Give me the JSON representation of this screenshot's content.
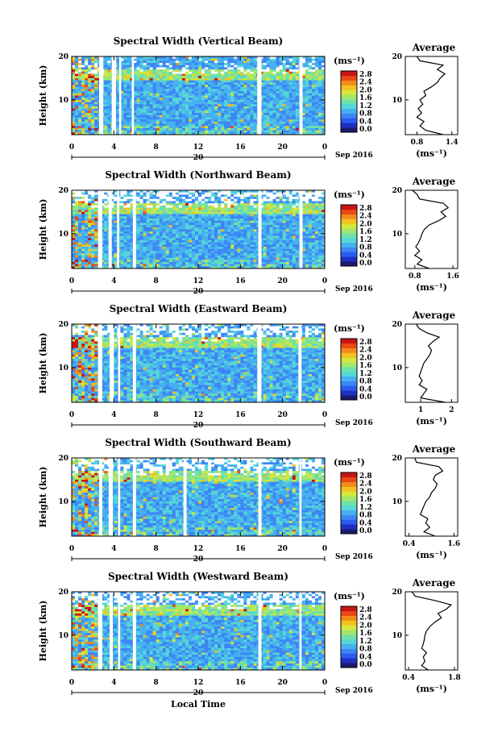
{
  "colorbar": {
    "unit_label": "(ms⁻¹)",
    "ticks": [
      "2.8",
      "2.4",
      "2.0",
      "1.6",
      "1.2",
      "0.8",
      "0.4",
      "0.0"
    ],
    "colors": [
      "#1a1a6e",
      "#1f2fbf",
      "#2a5cf0",
      "#3d86f5",
      "#47b0f0",
      "#56d6d6",
      "#6fe0a8",
      "#a3e66b",
      "#d6e63c",
      "#f2c21f",
      "#f28a1a",
      "#e84a14",
      "#c91414"
    ]
  },
  "x_axis": {
    "ticks": [
      "0",
      "4",
      "8",
      "12",
      "16",
      "20",
      "0"
    ],
    "date_label": "20",
    "month_label": "Sep 2016",
    "label": "Local Time"
  },
  "y_axis": {
    "label": "Height (km)",
    "ticks": [
      "20",
      "10"
    ]
  },
  "profile": {
    "title": "Average",
    "xlabel": "(ms⁻¹)"
  },
  "chart_data": [
    {
      "type": "heatmap",
      "title": "Spectral Width (Vertical Beam)",
      "xlim": [
        0,
        24
      ],
      "ylim": [
        2,
        20
      ],
      "gaps": [
        [
          2.6,
          3.0
        ],
        [
          3.8,
          4.2
        ],
        [
          4.5,
          4.7
        ],
        [
          5.7,
          5.9
        ],
        [
          17.6,
          18.0
        ],
        [
          21.6,
          21.9
        ]
      ],
      "profile": {
        "xticks": [
          "0.8",
          "1.4"
        ],
        "xlim": [
          0.6,
          1.5
        ],
        "heights": [
          2,
          3,
          4,
          5,
          6,
          7,
          8,
          9,
          10,
          11,
          12,
          13,
          14,
          15,
          16,
          17,
          18,
          19,
          20
        ],
        "values": [
          1.25,
          0.95,
          0.85,
          0.92,
          0.8,
          0.88,
          0.82,
          0.9,
          0.85,
          0.95,
          0.92,
          1.05,
          1.15,
          1.2,
          1.28,
          1.15,
          1.25,
          0.85,
          0.8
        ]
      }
    },
    {
      "type": "heatmap",
      "title": "Spectral Width (Northward Beam)",
      "xlim": [
        0,
        24
      ],
      "ylim": [
        2,
        20
      ],
      "gaps": [
        [
          2.5,
          2.9
        ],
        [
          3.5,
          3.8
        ],
        [
          4.3,
          4.5
        ],
        [
          5.8,
          6.1
        ],
        [
          17.7,
          18.0
        ],
        [
          21.6,
          21.9
        ]
      ],
      "profile": {
        "xticks": [
          "0.8",
          "1.6"
        ],
        "xlim": [
          0.6,
          1.7
        ],
        "heights": [
          2,
          3,
          4,
          5,
          6,
          7,
          8,
          9,
          10,
          11,
          12,
          13,
          14,
          15,
          16,
          17,
          18,
          19,
          20
        ],
        "values": [
          1.1,
          0.85,
          0.95,
          0.8,
          0.9,
          0.82,
          0.88,
          0.92,
          0.95,
          1.0,
          1.1,
          1.3,
          1.45,
          1.35,
          1.5,
          1.4,
          0.9,
          0.85,
          0.75
        ]
      }
    },
    {
      "type": "heatmap",
      "title": "Spectral Width (Eastward Beam)",
      "xlim": [
        0,
        24
      ],
      "ylim": [
        2,
        20
      ],
      "gaps": [
        [
          2.5,
          2.9
        ],
        [
          3.6,
          4.0
        ],
        [
          4.4,
          4.6
        ],
        [
          5.8,
          6.1
        ],
        [
          17.6,
          18.0
        ],
        [
          21.5,
          21.8
        ]
      ],
      "profile": {
        "xticks": [
          "1",
          "2"
        ],
        "xlim": [
          0.5,
          2.2
        ],
        "heights": [
          2,
          3,
          4,
          5,
          6,
          7,
          8,
          9,
          10,
          11,
          12,
          13,
          14,
          15,
          16,
          17,
          18,
          19,
          20
        ],
        "values": [
          1.8,
          1.0,
          1.1,
          1.2,
          0.95,
          1.05,
          0.95,
          1.0,
          1.05,
          1.1,
          1.2,
          1.3,
          1.35,
          1.25,
          1.4,
          1.6,
          1.2,
          0.95,
          0.85
        ]
      }
    },
    {
      "type": "heatmap",
      "title": "Spectral Width (Southward Beam)",
      "xlim": [
        0,
        24
      ],
      "ylim": [
        2,
        20
      ],
      "gaps": [
        [
          2.6,
          2.9
        ],
        [
          3.5,
          3.9
        ],
        [
          4.4,
          4.6
        ],
        [
          5.8,
          6.1
        ],
        [
          10.6,
          10.9
        ],
        [
          17.7,
          18.0
        ],
        [
          21.6,
          21.8
        ]
      ],
      "profile": {
        "xticks": [
          "0.4",
          "1.6"
        ],
        "xlim": [
          0.3,
          1.7
        ],
        "heights": [
          2,
          3,
          4,
          5,
          6,
          7,
          8,
          9,
          10,
          11,
          12,
          13,
          14,
          15,
          16,
          17,
          18,
          19,
          20
        ],
        "values": [
          1.1,
          0.8,
          0.95,
          0.85,
          0.9,
          0.7,
          0.75,
          0.8,
          0.85,
          0.95,
          1.0,
          1.1,
          1.15,
          1.05,
          1.1,
          1.3,
          1.2,
          0.6,
          0.55
        ]
      }
    },
    {
      "type": "heatmap",
      "title": "Spectral Width (Westward Beam)",
      "xlim": [
        0,
        24
      ],
      "ylim": [
        2,
        20
      ],
      "gaps": [
        [
          2.5,
          2.9
        ],
        [
          3.6,
          3.9
        ],
        [
          4.4,
          4.6
        ],
        [
          5.8,
          6.1
        ],
        [
          17.7,
          18.0
        ],
        [
          21.6,
          21.8
        ]
      ],
      "profile": {
        "xticks": [
          "0.4",
          "1.8"
        ],
        "xlim": [
          0.3,
          1.9
        ],
        "heights": [
          2,
          3,
          4,
          5,
          6,
          7,
          8,
          9,
          10,
          11,
          12,
          13,
          14,
          15,
          16,
          17,
          18,
          19,
          20
        ],
        "values": [
          1.0,
          0.8,
          0.9,
          0.85,
          0.95,
          0.8,
          0.85,
          0.88,
          0.9,
          0.95,
          1.05,
          1.2,
          1.4,
          1.3,
          1.55,
          1.7,
          1.2,
          0.6,
          0.5
        ]
      }
    }
  ]
}
